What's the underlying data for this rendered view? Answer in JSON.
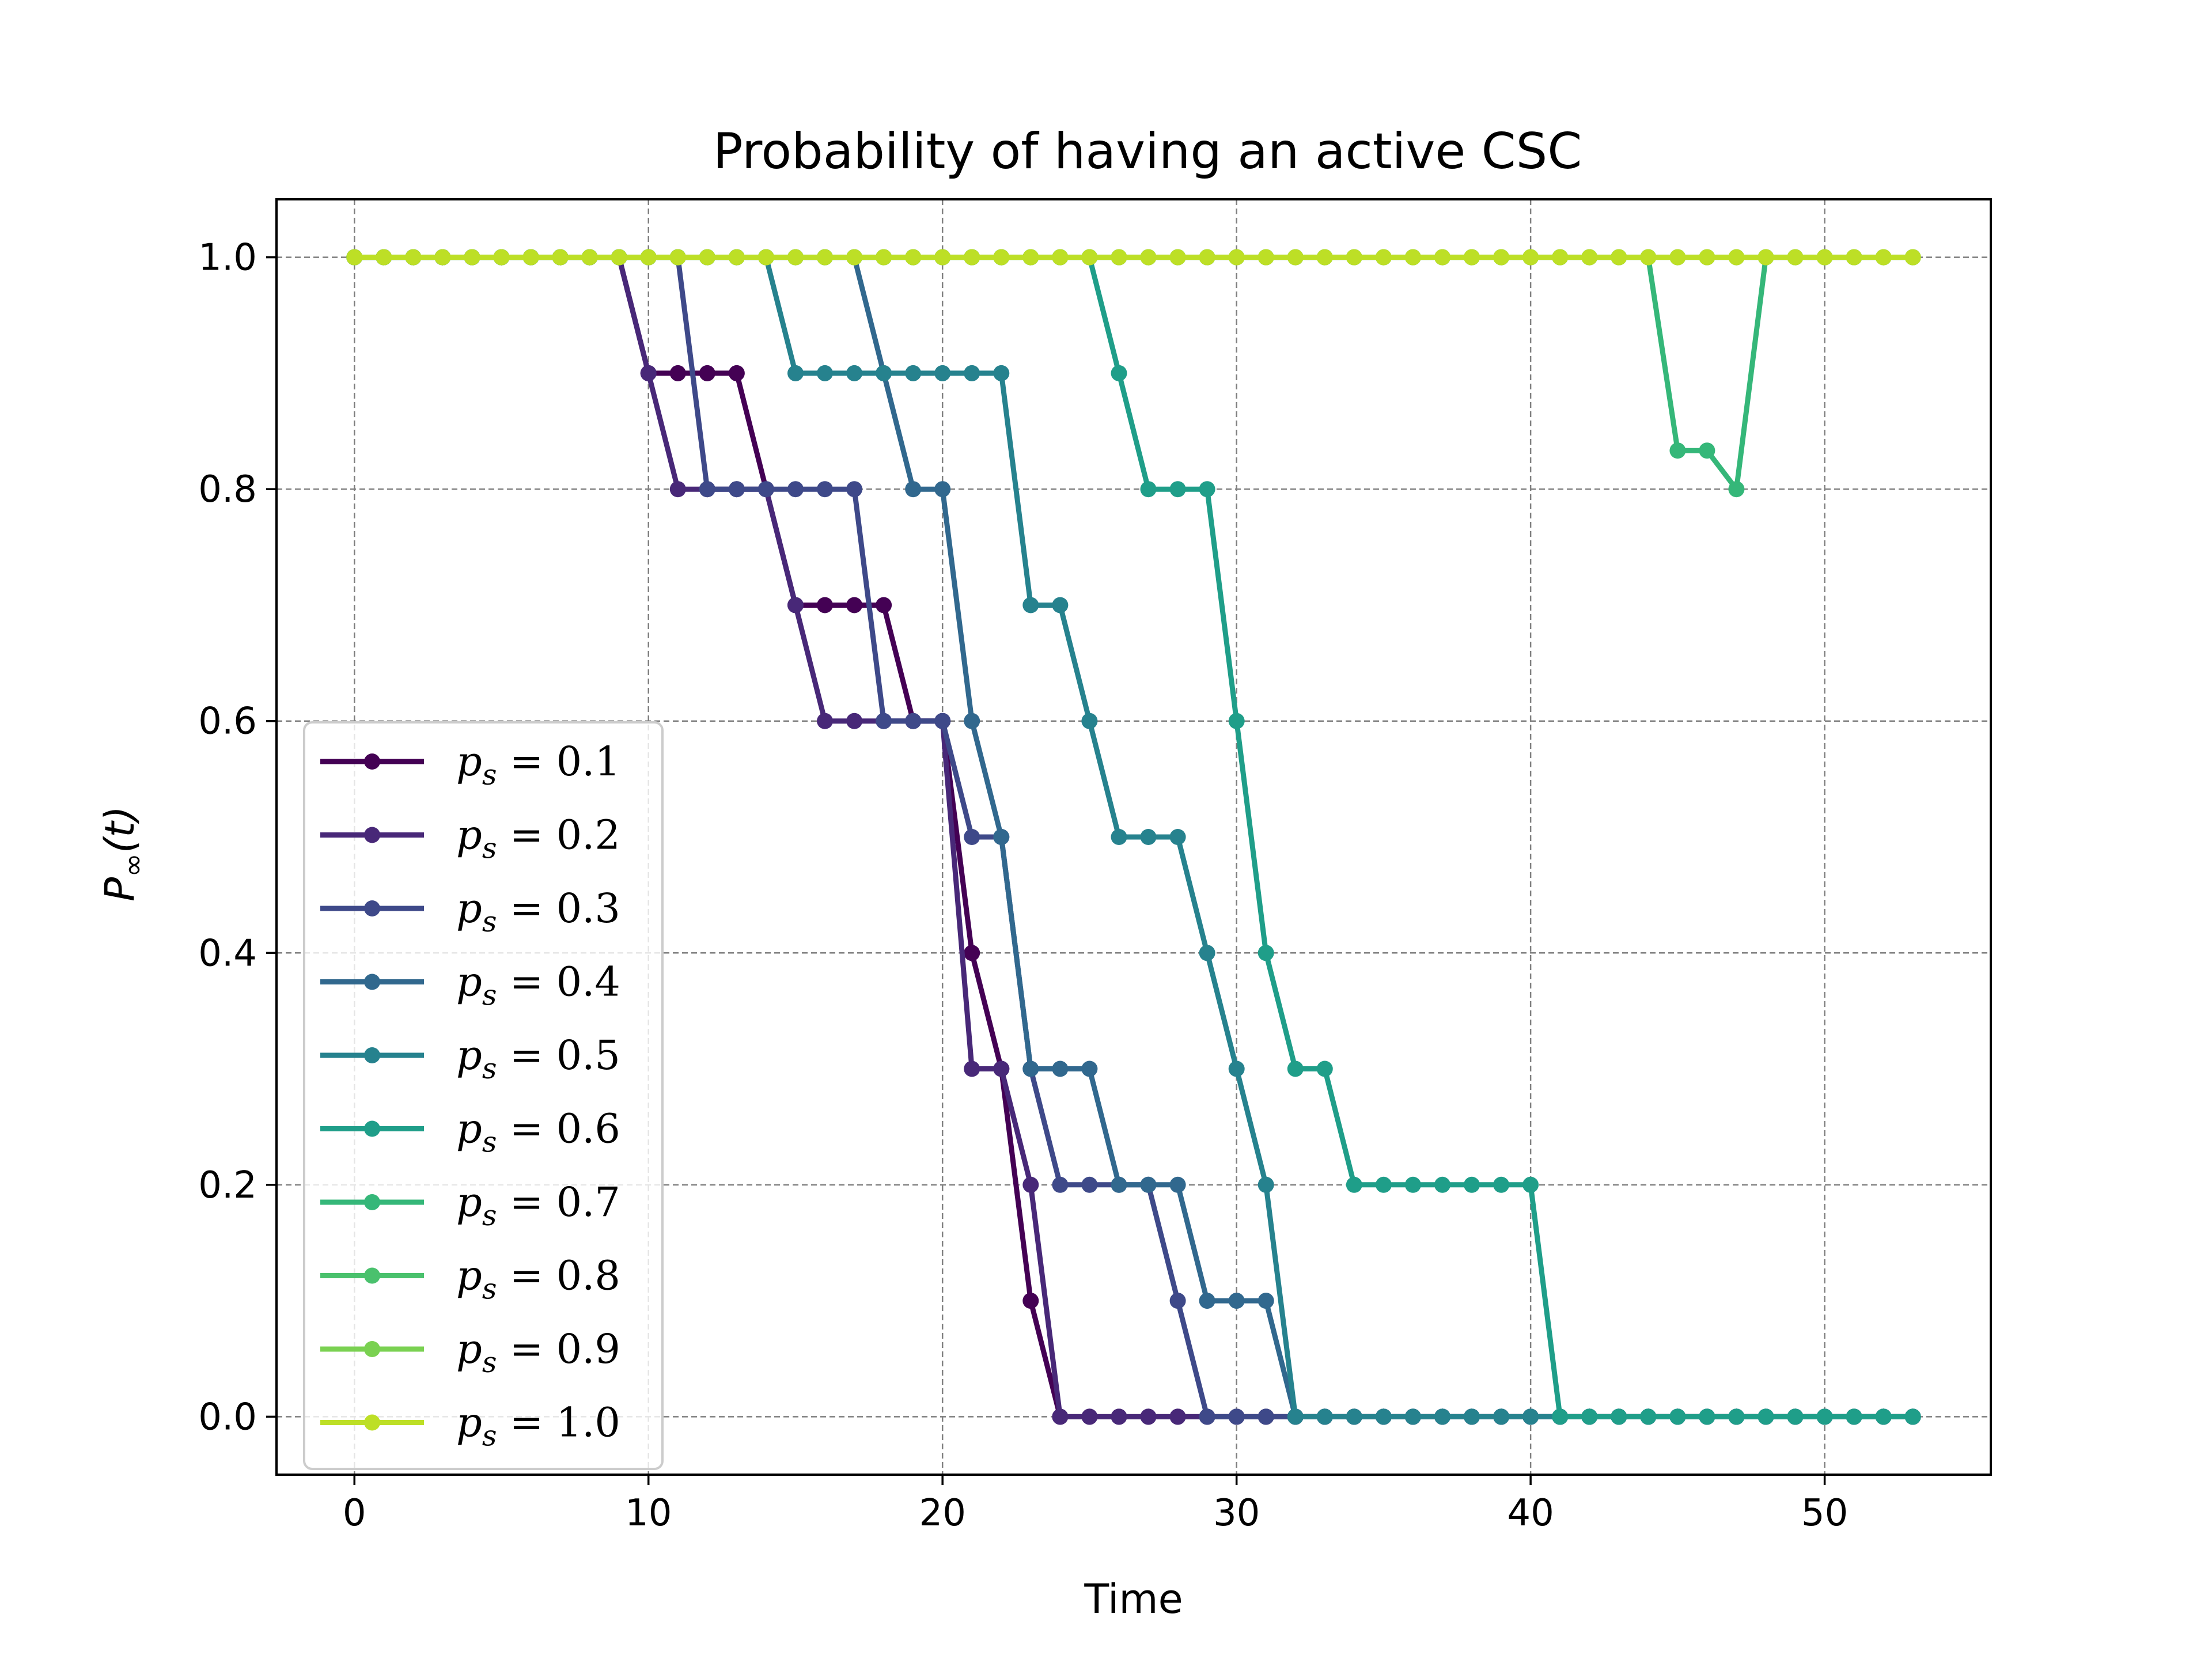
{
  "chart_data": {
    "type": "line",
    "title": "Probability of having an active CSC",
    "xlabel": "Time",
    "ylabel": "P∞(t)",
    "xlim": [
      -2.65,
      55.65
    ],
    "ylim": [
      -0.05,
      1.05
    ],
    "xticks": [
      0,
      10,
      20,
      30,
      40,
      50
    ],
    "yticks": [
      0.0,
      0.2,
      0.4,
      0.6,
      0.8,
      1.0
    ],
    "grid": true,
    "legend_position": "lower-left",
    "x": [
      0,
      1,
      2,
      3,
      4,
      5,
      6,
      7,
      8,
      9,
      10,
      11,
      12,
      13,
      14,
      15,
      16,
      17,
      18,
      19,
      20,
      21,
      22,
      23,
      24,
      25,
      26,
      27,
      28,
      29,
      30,
      31,
      32,
      33,
      34,
      35,
      36,
      37,
      38,
      39,
      40,
      41,
      42,
      43,
      44,
      45,
      46,
      47,
      48,
      49,
      50,
      51,
      52,
      53
    ],
    "series": [
      {
        "name": "p_s = 0.1",
        "color": "#440154",
        "values": [
          1,
          1,
          1,
          1,
          1,
          1,
          1,
          1,
          1,
          1,
          0.9,
          0.9,
          0.9,
          0.9,
          0.8,
          0.7,
          0.7,
          0.7,
          0.7,
          0.6,
          0.6,
          0.4,
          0.3,
          0.1,
          0,
          0,
          0,
          0,
          0,
          0,
          0,
          0,
          0,
          0,
          0,
          0,
          0,
          0,
          0,
          0,
          0,
          0,
          0,
          0,
          0,
          0,
          0,
          0,
          0,
          0,
          0,
          0,
          0,
          0
        ]
      },
      {
        "name": "p_s = 0.2",
        "color": "#482878",
        "values": [
          1,
          1,
          1,
          1,
          1,
          1,
          1,
          1,
          1,
          1,
          0.9,
          0.8,
          0.8,
          0.8,
          0.8,
          0.7,
          0.6,
          0.6,
          0.6,
          0.6,
          0.6,
          0.3,
          0.3,
          0.2,
          0,
          0,
          0,
          0,
          0,
          0,
          0,
          0,
          0,
          0,
          0,
          0,
          0,
          0,
          0,
          0,
          0,
          0,
          0,
          0,
          0,
          0,
          0,
          0,
          0,
          0,
          0,
          0,
          0,
          0
        ]
      },
      {
        "name": "p_s = 0.3",
        "color": "#3e4989",
        "values": [
          1,
          1,
          1,
          1,
          1,
          1,
          1,
          1,
          1,
          1,
          1,
          1,
          0.8,
          0.8,
          0.8,
          0.8,
          0.8,
          0.8,
          0.6,
          0.6,
          0.6,
          0.5,
          0.5,
          0.3,
          0.2,
          0.2,
          0.2,
          0.2,
          0.1,
          0,
          0,
          0,
          0,
          0,
          0,
          0,
          0,
          0,
          0,
          0,
          0,
          0,
          0,
          0,
          0,
          0,
          0,
          0,
          0,
          0,
          0,
          0,
          0,
          0
        ]
      },
      {
        "name": "p_s = 0.4",
        "color": "#31688e",
        "values": [
          1,
          1,
          1,
          1,
          1,
          1,
          1,
          1,
          1,
          1,
          1,
          1,
          1,
          1,
          1,
          1,
          1,
          1,
          0.9,
          0.8,
          0.8,
          0.6,
          0.5,
          0.3,
          0.3,
          0.3,
          0.2,
          0.2,
          0.2,
          0.1,
          0.1,
          0.1,
          0,
          0,
          0,
          0,
          0,
          0,
          0,
          0,
          0,
          0,
          0,
          0,
          0,
          0,
          0,
          0,
          0,
          0,
          0,
          0,
          0,
          0
        ]
      },
      {
        "name": "p_s = 0.5",
        "color": "#26828e",
        "values": [
          1,
          1,
          1,
          1,
          1,
          1,
          1,
          1,
          1,
          1,
          1,
          1,
          1,
          1,
          1,
          0.9,
          0.9,
          0.9,
          0.9,
          0.9,
          0.9,
          0.9,
          0.9,
          0.7,
          0.7,
          0.6,
          0.5,
          0.5,
          0.5,
          0.4,
          0.3,
          0.2,
          0,
          0,
          0,
          0,
          0,
          0,
          0,
          0,
          0,
          0,
          0,
          0,
          0,
          0,
          0,
          0,
          0,
          0,
          0,
          0,
          0,
          0
        ]
      },
      {
        "name": "p_s = 0.6",
        "color": "#1f9e89",
        "values": [
          1,
          1,
          1,
          1,
          1,
          1,
          1,
          1,
          1,
          1,
          1,
          1,
          1,
          1,
          1,
          1,
          1,
          1,
          1,
          1,
          1,
          1,
          1,
          1,
          1,
          1,
          0.9,
          0.8,
          0.8,
          0.8,
          0.6,
          0.4,
          0.3,
          0.3,
          0.2,
          0.2,
          0.2,
          0.2,
          0.2,
          0.2,
          0.2,
          0,
          0,
          0,
          0,
          0,
          0,
          0,
          0,
          0,
          0,
          0,
          0,
          0
        ]
      },
      {
        "name": "p_s = 0.7",
        "color": "#35b779",
        "values": [
          1,
          1,
          1,
          1,
          1,
          1,
          1,
          1,
          1,
          1,
          1,
          1,
          1,
          1,
          1,
          1,
          1,
          1,
          1,
          1,
          1,
          1,
          1,
          1,
          1,
          1,
          1,
          1,
          1,
          1,
          1,
          1,
          1,
          1,
          1,
          1,
          1,
          1,
          1,
          1,
          1,
          1,
          1,
          1,
          1,
          0.8333,
          0.8333,
          0.8,
          1,
          1,
          1,
          1,
          1,
          1
        ]
      },
      {
        "name": "p_s = 0.8",
        "color": "#4ac16d",
        "values": [
          1,
          1,
          1,
          1,
          1,
          1,
          1,
          1,
          1,
          1,
          1,
          1,
          1,
          1,
          1,
          1,
          1,
          1,
          1,
          1,
          1,
          1,
          1,
          1,
          1,
          1,
          1,
          1,
          1,
          1,
          1,
          1,
          1,
          1,
          1,
          1,
          1,
          1,
          1,
          1,
          1,
          1,
          1,
          1,
          1,
          1,
          1,
          1,
          1,
          1,
          1,
          1,
          1,
          1
        ]
      },
      {
        "name": "p_s = 0.9",
        "color": "#7ad151",
        "values": [
          1,
          1,
          1,
          1,
          1,
          1,
          1,
          1,
          1,
          1,
          1,
          1,
          1,
          1,
          1,
          1,
          1,
          1,
          1,
          1,
          1,
          1,
          1,
          1,
          1,
          1,
          1,
          1,
          1,
          1,
          1,
          1,
          1,
          1,
          1,
          1,
          1,
          1,
          1,
          1,
          1,
          1,
          1,
          1,
          1,
          1,
          1,
          1,
          1,
          1,
          1,
          1,
          1,
          1
        ]
      },
      {
        "name": "p_s = 1.0",
        "color": "#bddf26",
        "values": [
          1,
          1,
          1,
          1,
          1,
          1,
          1,
          1,
          1,
          1,
          1,
          1,
          1,
          1,
          1,
          1,
          1,
          1,
          1,
          1,
          1,
          1,
          1,
          1,
          1,
          1,
          1,
          1,
          1,
          1,
          1,
          1,
          1,
          1,
          1,
          1,
          1,
          1,
          1,
          1,
          1,
          1,
          1,
          1,
          1,
          1,
          1,
          1,
          1,
          1,
          1,
          1,
          1,
          1
        ]
      }
    ]
  }
}
